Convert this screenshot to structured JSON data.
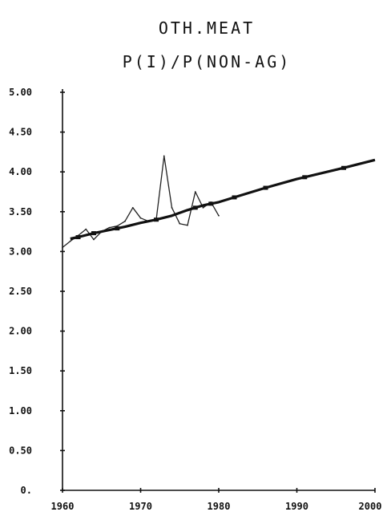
{
  "chart_data": {
    "type": "line",
    "title": "OTH.MEAT",
    "subtitle": "P(I)/P(NON-AG)",
    "xlabel": "",
    "ylabel": "",
    "xlim": [
      1960,
      2000
    ],
    "ylim": [
      0,
      5
    ],
    "x_ticks": [
      1960,
      1970,
      1980,
      1990,
      2000
    ],
    "x_tick_labels": [
      "1960",
      "1970",
      "1980",
      "1990",
      "2000"
    ],
    "y_ticks": [
      0,
      0.5,
      1.0,
      1.5,
      2.0,
      2.5,
      3.0,
      3.5,
      4.0,
      4.5,
      5.0
    ],
    "y_tick_labels": [
      "0.",
      "0.50",
      "1.00",
      "1.50",
      "2.00",
      "2.50",
      "3.00",
      "3.50",
      "4.00",
      "4.50",
      "5.00"
    ],
    "grid": false,
    "series": [
      {
        "role": "trend",
        "x": [
          1961,
          1962,
          1964,
          1966,
          1968,
          1970,
          1972,
          1974,
          1976,
          1978,
          1980,
          1982,
          1986,
          1990,
          1996,
          2000
        ],
        "y": [
          3.16,
          3.18,
          3.23,
          3.27,
          3.31,
          3.36,
          3.4,
          3.45,
          3.52,
          3.58,
          3.62,
          3.68,
          3.8,
          3.91,
          4.05,
          4.15
        ],
        "markers_at": [
          1962,
          1964,
          1967,
          1972,
          1977,
          1979,
          1982,
          1986,
          1991,
          1996
        ]
      },
      {
        "role": "observed",
        "x": [
          1960,
          1961,
          1962,
          1963,
          1964,
          1965,
          1966,
          1967,
          1968,
          1969,
          1970,
          1971,
          1972,
          1973,
          1974,
          1975,
          1976,
          1977,
          1978,
          1979,
          1980
        ],
        "y": [
          3.05,
          3.13,
          3.2,
          3.28,
          3.15,
          3.25,
          3.3,
          3.32,
          3.38,
          3.55,
          3.42,
          3.38,
          3.4,
          4.2,
          3.55,
          3.35,
          3.33,
          3.75,
          3.55,
          3.62,
          3.45
        ]
      }
    ]
  }
}
